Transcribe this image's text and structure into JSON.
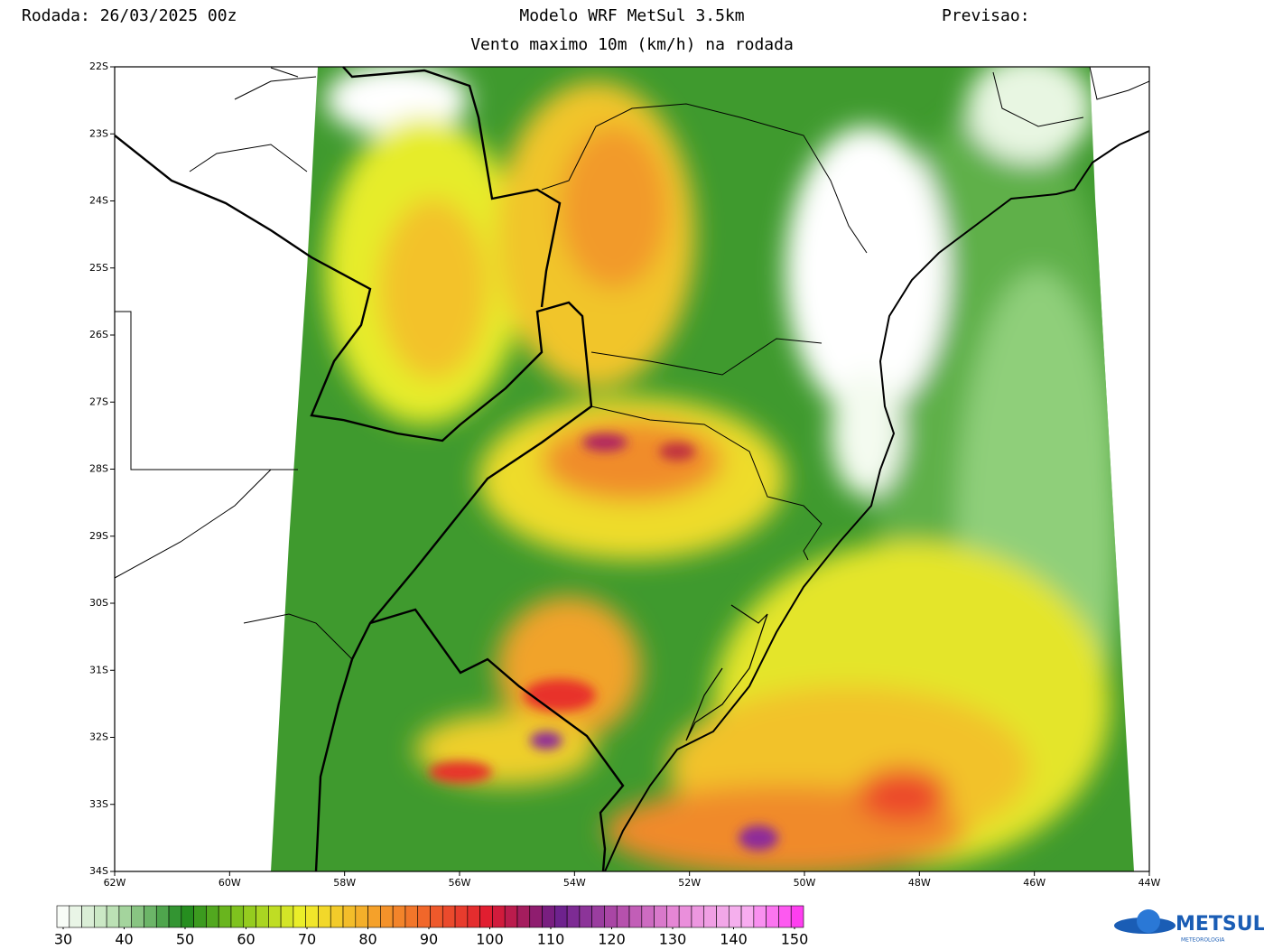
{
  "header": {
    "run": "Rodada: 26/03/2025 00z",
    "title": "Modelo WRF MetSul 3.5km",
    "subtitle": "Vento maximo 10m (km/h) na rodada",
    "forecast": "Previsao:"
  },
  "map": {
    "lat_labels": [
      "22S",
      "23S",
      "24S",
      "25S",
      "26S",
      "27S",
      "28S",
      "29S",
      "30S",
      "31S",
      "32S",
      "33S",
      "34S"
    ],
    "lon_labels": [
      "62W",
      "60W",
      "58W",
      "56W",
      "54W",
      "52W",
      "50W",
      "48W",
      "46W",
      "44W"
    ]
  },
  "colorbar": {
    "ticks": [
      30,
      40,
      50,
      60,
      70,
      80,
      90,
      100,
      110,
      120,
      130,
      140,
      150
    ]
  },
  "logo": {
    "name": "METSUL",
    "tagline": "METEOROLOGIA"
  }
}
